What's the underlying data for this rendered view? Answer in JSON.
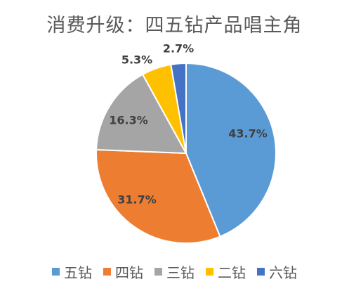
{
  "chart_data": {
    "type": "pie",
    "title": "消费升级：四五钻产品唱主角",
    "categories": [
      "五钻",
      "四钻",
      "三钻",
      "二钻",
      "六钻"
    ],
    "values": [
      43.7,
      31.7,
      16.3,
      5.3,
      2.7
    ],
    "labels": [
      "43.7%",
      "31.7%",
      "16.3%",
      "5.3%",
      "2.7%"
    ],
    "colors": [
      "#5b9bd5",
      "#ed7d31",
      "#a5a5a5",
      "#ffc000",
      "#4472c4"
    ],
    "legend_position": "bottom"
  }
}
